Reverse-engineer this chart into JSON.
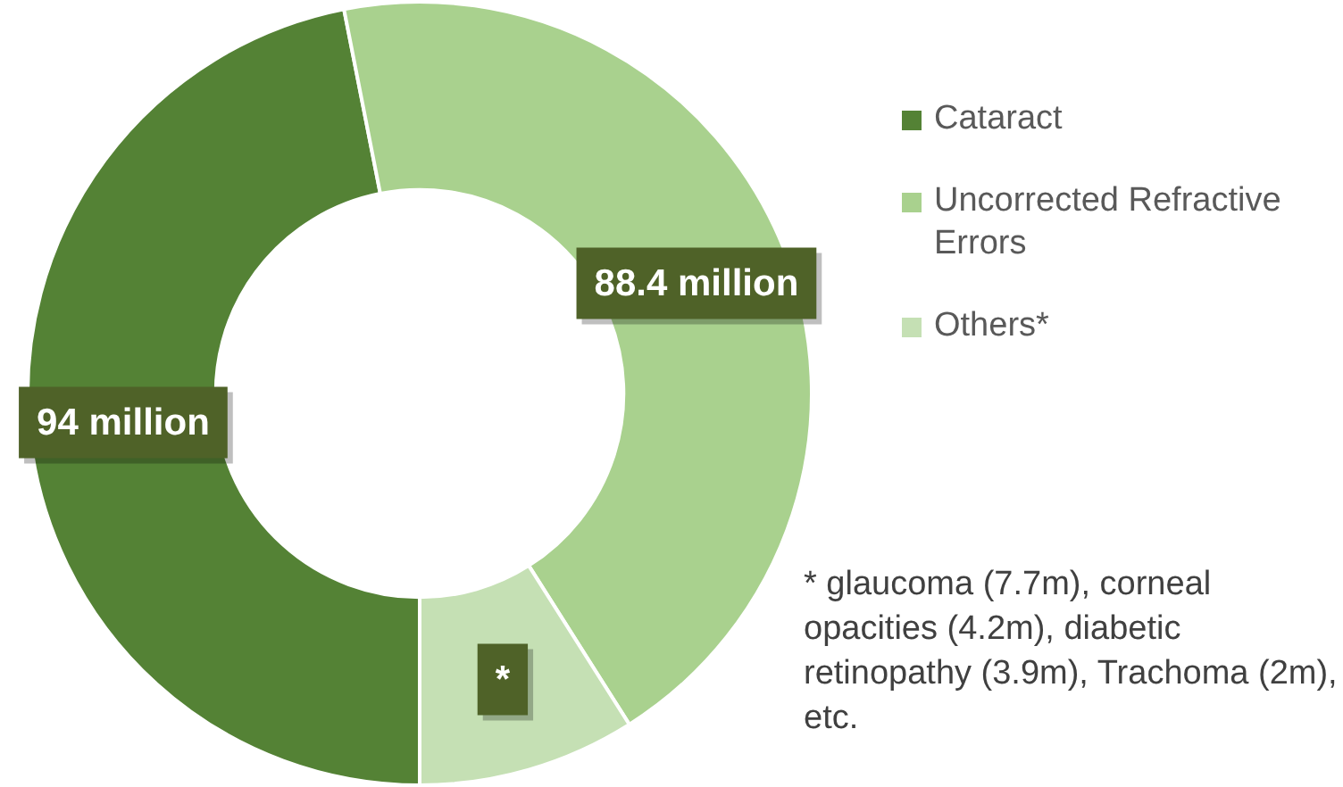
{
  "chart_data": {
    "type": "donut",
    "categories": [
      "Cataract",
      "Uncorrected Refractive Errors",
      "Others*"
    ],
    "values": [
      94,
      88.4,
      18
    ],
    "colors": [
      "#548235",
      "#a9d18e",
      "#c5e0b4"
    ],
    "value_labels": [
      "94 million",
      "88.4 million",
      "*"
    ],
    "legend": "right",
    "annotations": [
      "* glaucoma (7.7m), corneal opacities (4.2m), diabetic retinopathy (3.9m), Trachoma (2m), etc."
    ]
  }
}
